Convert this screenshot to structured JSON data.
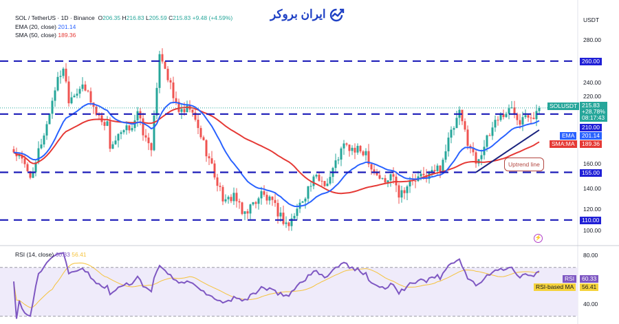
{
  "header": {
    "symbol": "SOL / TetherUS · 1D · Binance",
    "o_label": "O",
    "open": "206.35",
    "h_label": "H",
    "high": "216.83",
    "l_label": "L",
    "low": "205.59",
    "c_label": "C",
    "close": "215.83",
    "change": "+9.48 (+4.59%)",
    "ema_label": "EMA (20, close)",
    "ema_value": "201.14",
    "sma_label": "SMA (50, close)",
    "sma_value": "189.36"
  },
  "logo": {
    "text": "ایران بروکر"
  },
  "axis": {
    "currency": "USDT",
    "ticks": [
      "280.00",
      "240.00",
      "220.00",
      "160.00",
      "140.00",
      "120.00",
      "100.00"
    ],
    "rsi_ticks": [
      "80.00",
      "40.00"
    ]
  },
  "badges": {
    "level_260": "260.00",
    "level_210": "210.00",
    "level_155": "155.00",
    "level_110": "110.00",
    "symbol": "SOLUSDT",
    "price": "215.83",
    "pct": "+28.78%",
    "countdown": "08:17:43",
    "ema_tag": "EMA",
    "ema": "201.14",
    "sma_tag": "SMA:MA",
    "sma": "189.36",
    "rsi_tag": "RSI",
    "rsi": "60.33",
    "rsima_tag": "RSI-based MA",
    "rsima": "56.41"
  },
  "annotation": {
    "uptrend": "Uptrend line"
  },
  "rsi": {
    "label": "RSI (14, close)",
    "value": "60.33",
    "ma": "56.41"
  },
  "colors": {
    "up": "#26a69a",
    "down": "#ef5350",
    "ema": "#2962ff",
    "sma": "#e53935",
    "levels": "#1a1ab8",
    "rsi": "#7e57c2",
    "rsi_ma": "#f5c23b"
  },
  "chart_data": {
    "type": "candlestick",
    "symbol": "SOLUSDT",
    "interval": "1D",
    "ylim": [
      90,
      300
    ],
    "rsi_ylim": [
      25,
      88
    ],
    "horizontal_levels": [
      260,
      210,
      155,
      110
    ],
    "trendline": {
      "from": [
        168,
        155
      ],
      "to": [
        191,
        195
      ]
    },
    "close_keypoints": [
      [
        0,
        175
      ],
      [
        3,
        165
      ],
      [
        7,
        150
      ],
      [
        9,
        175
      ],
      [
        12,
        200
      ],
      [
        15,
        235
      ],
      [
        18,
        255
      ],
      [
        20,
        225
      ],
      [
        24,
        235
      ],
      [
        27,
        230
      ],
      [
        30,
        210
      ],
      [
        34,
        200
      ],
      [
        35,
        180
      ],
      [
        39,
        190
      ],
      [
        43,
        200
      ],
      [
        45,
        210
      ],
      [
        48,
        185
      ],
      [
        50,
        180
      ],
      [
        52,
        230
      ],
      [
        53,
        270
      ],
      [
        55,
        255
      ],
      [
        58,
        225
      ],
      [
        61,
        210
      ],
      [
        64,
        215
      ],
      [
        68,
        190
      ],
      [
        72,
        160
      ],
      [
        74,
        145
      ],
      [
        77,
        125
      ],
      [
        80,
        135
      ],
      [
        83,
        115
      ],
      [
        87,
        125
      ],
      [
        90,
        135
      ],
      [
        94,
        125
      ],
      [
        98,
        110
      ],
      [
        100,
        105
      ],
      [
        103,
        120
      ],
      [
        107,
        140
      ],
      [
        110,
        150
      ],
      [
        114,
        145
      ],
      [
        118,
        170
      ],
      [
        120,
        180
      ],
      [
        124,
        175
      ],
      [
        128,
        175
      ],
      [
        130,
        160
      ],
      [
        133,
        150
      ],
      [
        135,
        145
      ],
      [
        138,
        155
      ],
      [
        140,
        135
      ],
      [
        144,
        145
      ],
      [
        148,
        150
      ],
      [
        152,
        155
      ],
      [
        155,
        160
      ],
      [
        158,
        185
      ],
      [
        162,
        210
      ],
      [
        165,
        185
      ],
      [
        168,
        165
      ],
      [
        170,
        175
      ],
      [
        173,
        190
      ],
      [
        175,
        205
      ],
      [
        178,
        210
      ],
      [
        181,
        215
      ],
      [
        184,
        205
      ],
      [
        186,
        213
      ],
      [
        189,
        208
      ],
      [
        191,
        216
      ]
    ]
  }
}
